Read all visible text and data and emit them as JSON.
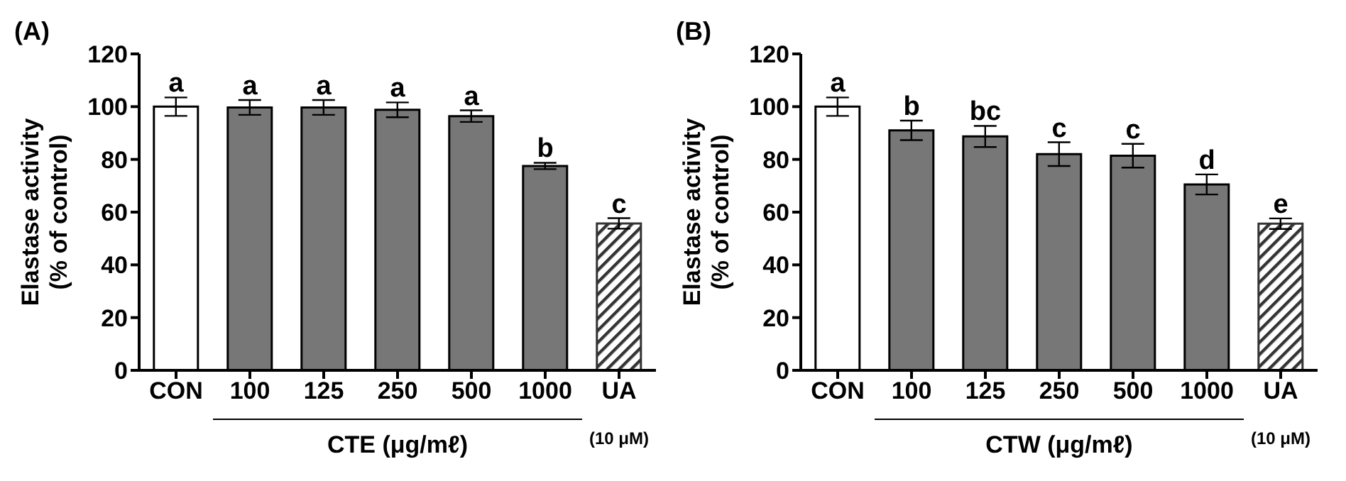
{
  "chart_data": [
    {
      "type": "bar",
      "title": "(A)",
      "ylabel": "Elastase activity\n(% of control)",
      "xlabel": "CTE (μg/mℓ)",
      "categories": [
        "CON",
        "100",
        "125",
        "250",
        "500",
        "1000",
        "UA"
      ],
      "values": [
        100,
        99.7,
        99.7,
        98.8,
        96.4,
        77.5,
        55.7
      ],
      "errors": [
        3.5,
        2.8,
        2.8,
        2.8,
        2.2,
        1.2,
        2.0
      ],
      "colors": [
        "#ffffff",
        "#777777",
        "#777777",
        "#777777",
        "#777777",
        "#777777",
        "#333333"
      ],
      "ylim": [
        0,
        120
      ],
      "yticks": [
        0,
        20,
        40,
        60,
        80,
        100,
        120
      ],
      "annotations": [
        {
          "text": "a",
          "x": "CON",
          "y": 103.5
        },
        {
          "text": "a",
          "x": "100",
          "y": 102.5
        },
        {
          "text": "a",
          "x": "125",
          "y": 102.5
        },
        {
          "text": "a",
          "x": "250",
          "y": 101.6
        },
        {
          "text": "a",
          "x": "500",
          "y": 98.6
        },
        {
          "text": "b",
          "x": "1000",
          "y": 78.7
        },
        {
          "text": "c",
          "x": "UA",
          "y": 57.7
        },
        "(10 μM)"
      ]
    },
    {
      "type": "bar",
      "title": "(B)",
      "ylabel": "Elastase activity\n(% of control)",
      "xlabel": "CTW (μg/mℓ)",
      "categories": [
        "CON",
        "100",
        "125",
        "250",
        "500",
        "1000",
        "UA"
      ],
      "values": [
        100,
        91,
        88.7,
        82,
        81.4,
        70.5,
        55.6
      ],
      "errors": [
        3.5,
        3.7,
        4,
        4.5,
        4.5,
        3.8,
        2.0
      ],
      "colors": [
        "#ffffff",
        "#777777",
        "#777777",
        "#777777",
        "#777777",
        "#777777",
        "#333333"
      ],
      "ylim": [
        0,
        120
      ],
      "yticks": [
        0,
        20,
        40,
        60,
        80,
        100,
        120
      ],
      "annotations": [
        {
          "text": "a",
          "x": "CON",
          "y": 103.5
        },
        {
          "text": "b",
          "x": "100",
          "y": 94.7
        },
        {
          "text": "bc",
          "x": "125",
          "y": 92.7
        },
        {
          "text": "c",
          "x": "250",
          "y": 86.5
        },
        {
          "text": "c",
          "x": "500",
          "y": 85.9
        },
        {
          "text": "d",
          "x": "1000",
          "y": 74.3
        },
        {
          "text": "e",
          "x": "UA",
          "y": 57.6
        },
        "(10 μM)"
      ]
    }
  ]
}
